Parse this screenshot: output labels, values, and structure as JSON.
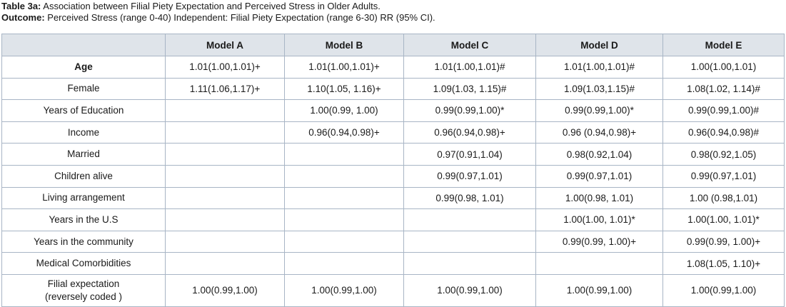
{
  "caption": {
    "line1_label": "Table 3a:",
    "line1_text": " Association between Filial Piety Expectation and Perceived Stress in Older Adults.",
    "line2_label": "Outcome:",
    "line2_text": " Perceived Stress (range 0-40) Independent: Filial Piety Expectation (range 6-30) RR (95% CI)."
  },
  "table": {
    "headers": [
      "",
      "Model A",
      "Model B",
      "Model C",
      "Model D",
      "Model E"
    ],
    "rows": [
      {
        "label": "Age",
        "bold": true,
        "cells": [
          "1.01(1.00,1.01)+",
          "1.01(1.00,1.01)+",
          "1.01(1.00,1.01)#",
          "1.01(1.00,1.01)#",
          "1.00(1.00,1.01)"
        ]
      },
      {
        "label": "Female",
        "cells": [
          "1.11(1.06,1.17)+",
          "1.10(1.05, 1.16)+",
          "1.09(1.03, 1.15)#",
          "1.09(1.03,1.15)#",
          "1.08(1.02, 1.14)#"
        ]
      },
      {
        "label": "Years of Education",
        "cells": [
          "",
          "1.00(0.99, 1.00)",
          "0.99(0.99,1.00)*",
          "0.99(0.99,1.00)*",
          "0.99(0.99,1.00)#"
        ]
      },
      {
        "label": "Income",
        "cells": [
          "",
          "0.96(0.94,0.98)+",
          "0.96(0.94,0.98)+",
          "0.96 (0.94,0.98)+",
          "0.96(0.94,0.98)#"
        ]
      },
      {
        "label": "Married",
        "cells": [
          "",
          "",
          "0.97(0.91,1.04)",
          "0.98(0.92,1.04)",
          "0.98(0.92,1.05)"
        ]
      },
      {
        "label": "Children alive",
        "cells": [
          "",
          "",
          "0.99(0.97,1.01)",
          "0.99(0.97,1.01)",
          "0.99(0.97,1.01)"
        ]
      },
      {
        "label": "Living arrangement",
        "cells": [
          "",
          "",
          "0.99(0.98, 1.01)",
          "1.00(0.98, 1.01)",
          "1.00 (0.98,1.01)"
        ]
      },
      {
        "label": "Years in the U.S",
        "cells": [
          "",
          "",
          "",
          "1.00(1.00, 1.01)*",
          "1.00(1.00, 1.01)*"
        ]
      },
      {
        "label": "Years in the community",
        "cells": [
          "",
          "",
          "",
          "0.99(0.99, 1.00)+",
          "0.99(0.99, 1.00)+"
        ]
      },
      {
        "label": "Medical Comorbidities",
        "cells": [
          "",
          "",
          "",
          "",
          "1.08(1.05, 1.10)+"
        ]
      },
      {
        "label_line1": "Filial expectation",
        "label_line2": "(reversely coded )",
        "cells": [
          "1.00(0.99,1.00)",
          "1.00(0.99,1.00)",
          "1.00(0.99,1.00)",
          "1.00(0.99,1.00)",
          "1.00(0.99,1.00)"
        ]
      }
    ]
  }
}
